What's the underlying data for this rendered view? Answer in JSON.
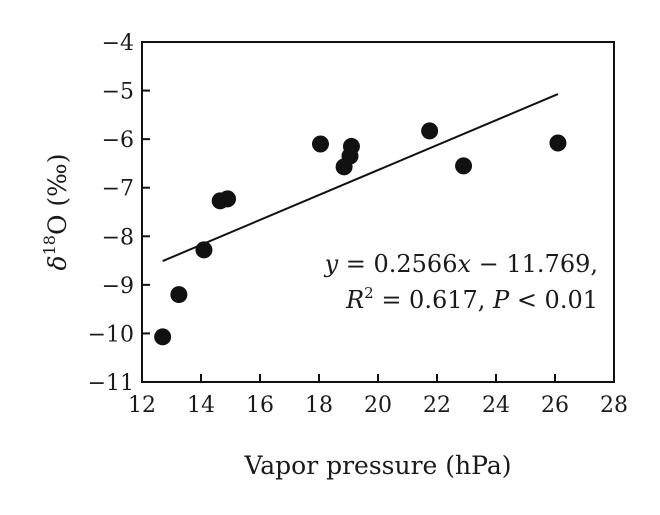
{
  "chart_data": {
    "type": "scatter",
    "xlabel": "Vapor pressure (hPa)",
    "ylabel": {
      "prefix": "δ",
      "superscript": "18",
      "suffix": "O (‰)"
    },
    "xlim": [
      12,
      28
    ],
    "ylim": [
      -11,
      -4
    ],
    "xticks": [
      "12",
      "14",
      "16",
      "18",
      "20",
      "22",
      "24",
      "26",
      "28"
    ],
    "yticks": [
      "−11",
      "−10",
      "−9",
      "−8",
      "−7",
      "−6",
      "−5",
      "−4"
    ],
    "grid": false,
    "points": [
      {
        "x": 12.7,
        "y": -10.07
      },
      {
        "x": 13.25,
        "y": -9.2
      },
      {
        "x": 14.1,
        "y": -8.28
      },
      {
        "x": 14.65,
        "y": -7.27
      },
      {
        "x": 14.9,
        "y": -7.23
      },
      {
        "x": 18.05,
        "y": -6.1
      },
      {
        "x": 18.85,
        "y": -6.57
      },
      {
        "x": 19.05,
        "y": -6.35
      },
      {
        "x": 19.1,
        "y": -6.15
      },
      {
        "x": 21.75,
        "y": -5.83
      },
      {
        "x": 22.9,
        "y": -6.55
      },
      {
        "x": 26.1,
        "y": -6.08
      }
    ],
    "trendline": {
      "slope": 0.2566,
      "intercept": -11.769,
      "x_range": [
        12.7,
        26.1
      ]
    },
    "annotation": {
      "line1": {
        "y": "y",
        "eq": " = 0.2566",
        "x": "x",
        "rest": " − 11.769,"
      },
      "line2": {
        "r": "R",
        "sup": "2",
        "r_rest": " = 0.617, ",
        "p": "P",
        "p_rest": " < 0.01"
      }
    },
    "colors": {
      "marker": "#111111",
      "line": "#111111",
      "axis": "#111111"
    }
  }
}
